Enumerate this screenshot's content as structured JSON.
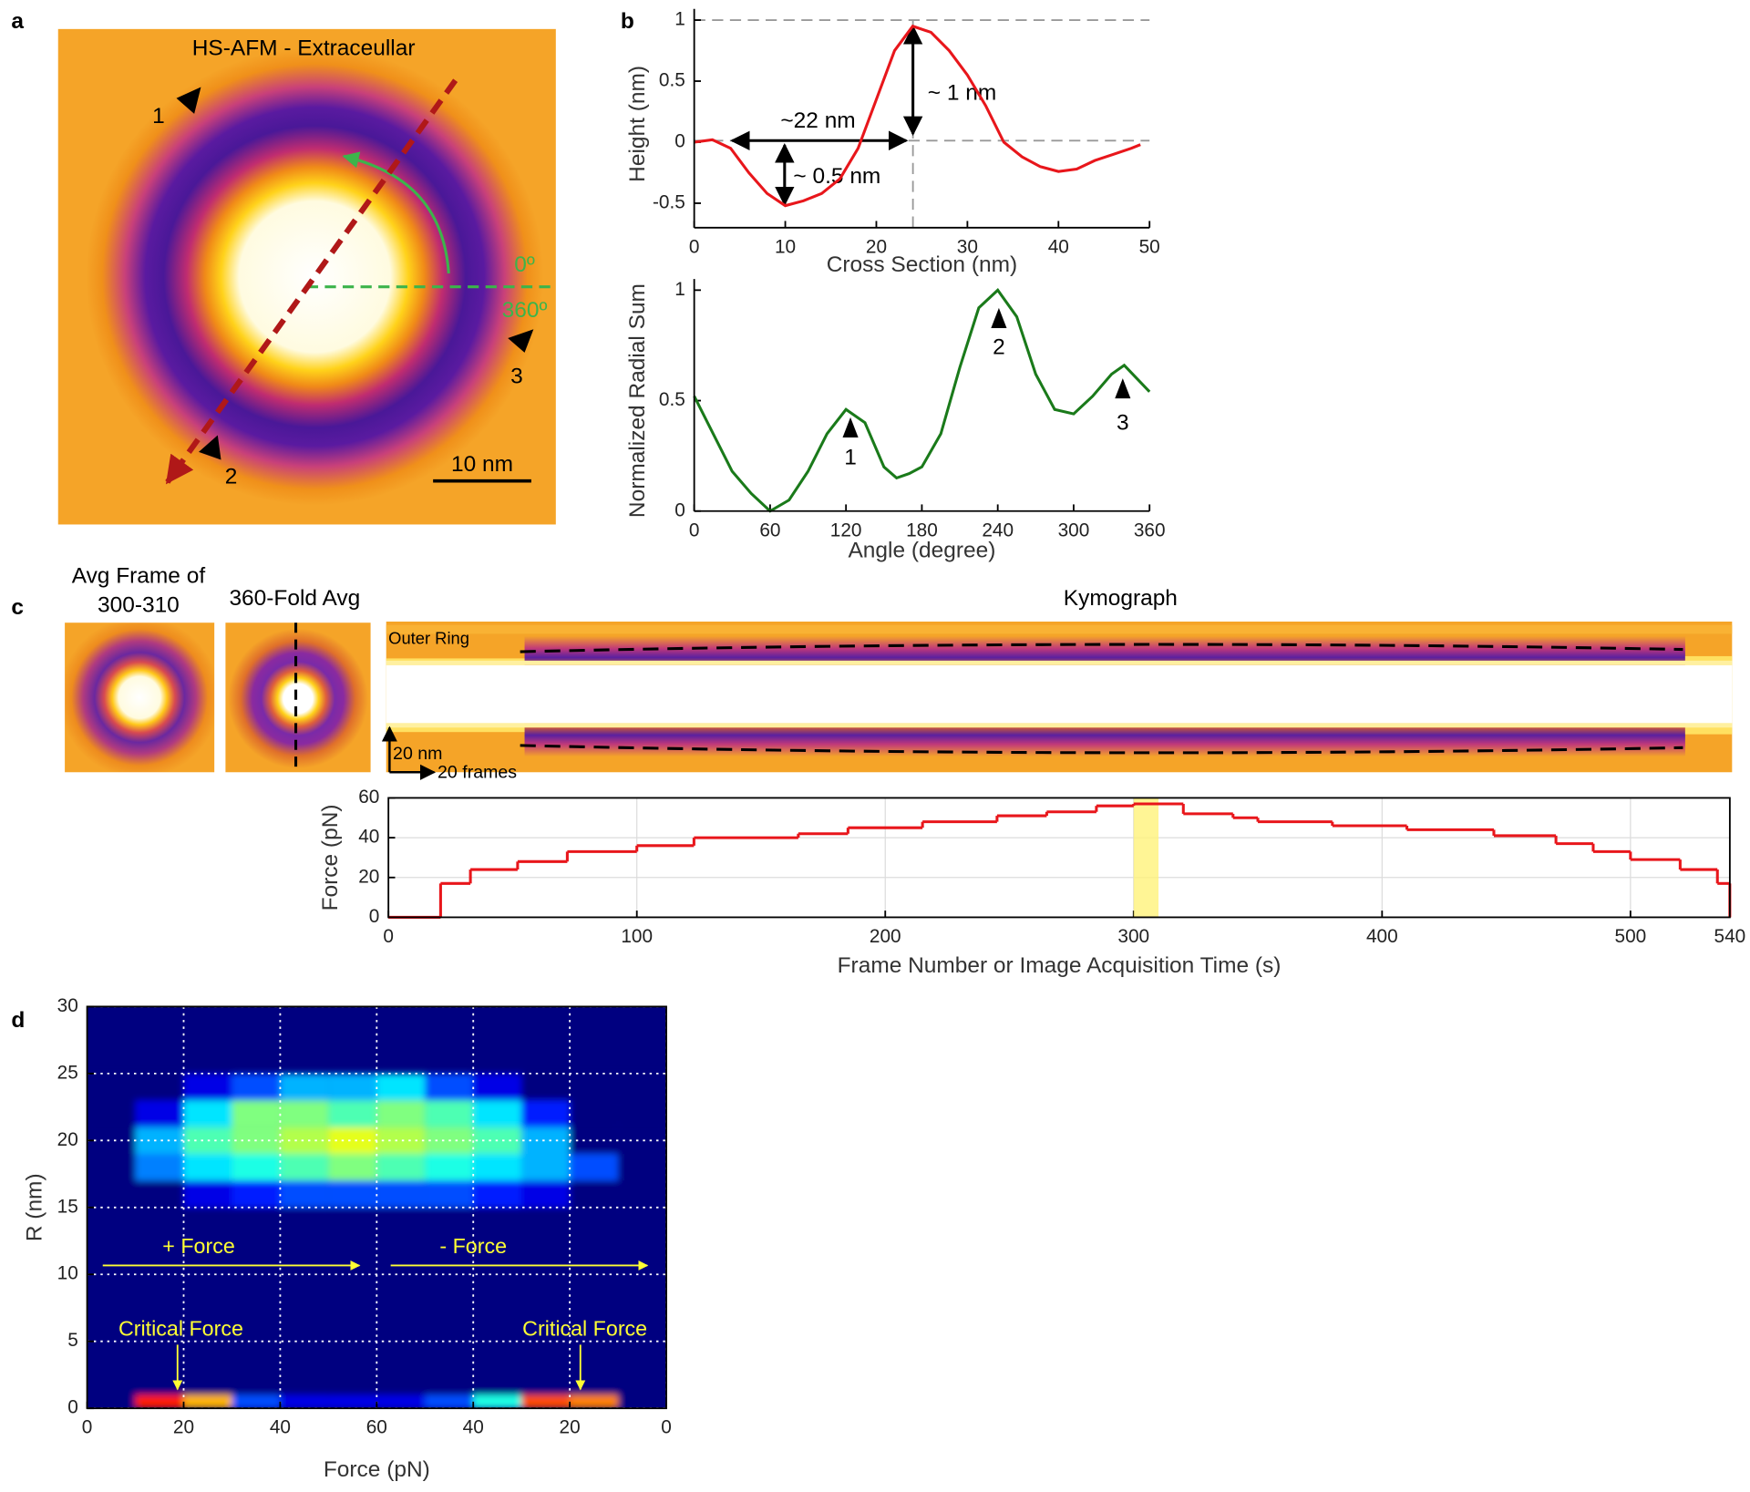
{
  "chart_data": [
    {
      "type": "image",
      "panel": "a",
      "title": "HS-AFM - Extraceullar",
      "annotations": [
        "1",
        "2",
        "3",
        "0º",
        "360º",
        "10 nm"
      ]
    },
    {
      "type": "line",
      "panel": "b",
      "xlabel": "Cross Section (nm)",
      "ylabel": "Height (nm)",
      "x": [
        0,
        2,
        4,
        6,
        8,
        10,
        12,
        14,
        16,
        18,
        20,
        22,
        24,
        26,
        28,
        30,
        32,
        34,
        36,
        38,
        40,
        42,
        44,
        46,
        48,
        49
      ],
      "values": [
        0,
        0.02,
        -0.05,
        -0.25,
        -0.42,
        -0.52,
        -0.48,
        -0.42,
        -0.3,
        -0.05,
        0.35,
        0.75,
        0.95,
        0.9,
        0.75,
        0.55,
        0.3,
        0,
        -0.12,
        -0.2,
        -0.24,
        -0.22,
        -0.15,
        -0.1,
        -0.05,
        -0.02
      ],
      "color": "#e8161b",
      "xlim": [
        0,
        50
      ],
      "ylim": [
        -0.7,
        1
      ],
      "xticks": [
        0,
        10,
        20,
        30,
        40,
        50
      ],
      "yticks": [
        -0.5,
        0,
        0.5,
        1
      ],
      "annotations": [
        "~22 nm",
        "~ 0.5 nm",
        "~ 1 nm"
      ]
    },
    {
      "type": "line",
      "xlabel": "Angle (degree)",
      "ylabel": "Normalized Radial Sum",
      "x": [
        0,
        15,
        30,
        45,
        60,
        75,
        90,
        105,
        120,
        135,
        150,
        160,
        170,
        180,
        195,
        210,
        225,
        240,
        255,
        270,
        285,
        300,
        315,
        330,
        340,
        350,
        360
      ],
      "values": [
        0.52,
        0.35,
        0.18,
        0.08,
        0,
        0.05,
        0.18,
        0.35,
        0.46,
        0.4,
        0.2,
        0.15,
        0.17,
        0.2,
        0.35,
        0.65,
        0.92,
        1,
        0.88,
        0.62,
        0.46,
        0.44,
        0.52,
        0.62,
        0.66,
        0.6,
        0.54
      ],
      "color": "#1a7a1a",
      "xlim": [
        0,
        360
      ],
      "ylim": [
        0,
        1
      ],
      "xticks": [
        0,
        60,
        120,
        180,
        240,
        300,
        360
      ],
      "yticks": [
        0,
        0.5,
        1
      ],
      "annotations": [
        "1",
        "2",
        "3"
      ]
    },
    {
      "type": "image",
      "panel": "c",
      "titles": [
        "Avg Frame of",
        "300-310",
        "360-Fold Avg",
        "Kymograph"
      ],
      "annotations": [
        "Outer Ring",
        "20 nm",
        "20 frames"
      ]
    },
    {
      "type": "step",
      "xlabel": "Frame Number or Image Acquisition Time (s)",
      "ylabel": "Force (pN)",
      "x": [
        0,
        21,
        33,
        52,
        72,
        100,
        123,
        165,
        185,
        215,
        245,
        265,
        285,
        300,
        320,
        340,
        350,
        380,
        410,
        445,
        470,
        485,
        500,
        520,
        535,
        540
      ],
      "values": [
        0,
        17,
        24,
        28,
        33,
        36,
        40,
        42,
        45,
        48,
        51,
        53,
        56,
        57,
        52,
        50,
        48,
        46,
        44,
        41,
        37,
        33,
        29,
        24,
        17,
        0
      ],
      "color": "#e8161b",
      "highlight_x": [
        300,
        310
      ],
      "xlim": [
        0,
        540
      ],
      "ylim": [
        0,
        60
      ],
      "xticks": [
        0,
        100,
        200,
        300,
        400,
        500,
        540
      ],
      "yticks": [
        0,
        20,
        40,
        60
      ],
      "grid": true
    },
    {
      "type": "heatmap",
      "panel": "d",
      "xlabel": "Force (pN)",
      "ylabel": "R (nm)",
      "xbins": [
        0,
        10,
        20,
        30,
        40,
        50,
        60,
        70,
        80,
        90,
        100,
        110,
        120
      ],
      "ybins": [
        0,
        1,
        15,
        17,
        19,
        21,
        23,
        25
      ],
      "z": [
        [
          0,
          0.85,
          0.7,
          0.2,
          0.1,
          0.1,
          0.1,
          0.2,
          0.4,
          0.8,
          0.75,
          0
        ],
        [
          0,
          0,
          0,
          0,
          0,
          0,
          0,
          0,
          0,
          0,
          0,
          0
        ],
        [
          0,
          0,
          0.1,
          0.15,
          0.2,
          0.2,
          0.2,
          0.2,
          0.15,
          0.1,
          0,
          0
        ],
        [
          0,
          0.25,
          0.35,
          0.4,
          0.45,
          0.5,
          0.45,
          0.4,
          0.35,
          0.3,
          0.2,
          0
        ],
        [
          0,
          0.3,
          0.45,
          0.5,
          0.55,
          0.6,
          0.55,
          0.5,
          0.45,
          0.3,
          0,
          0
        ],
        [
          0,
          0.1,
          0.35,
          0.5,
          0.5,
          0.45,
          0.5,
          0.45,
          0.35,
          0.15,
          0,
          0
        ],
        [
          0,
          0,
          0.1,
          0.2,
          0.3,
          0.3,
          0.35,
          0.2,
          0.1,
          0,
          0,
          0
        ]
      ],
      "xlim": [
        0,
        120
      ],
      "ylim": [
        0,
        30
      ],
      "xticks": [
        0,
        20,
        40,
        60,
        {
          "value": 80,
          "label": "40"
        },
        {
          "value": 100,
          "label": "20"
        },
        {
          "value": 120,
          "label": "0"
        }
      ],
      "yticks": [
        0,
        5,
        10,
        15,
        20,
        25,
        30
      ],
      "grid": true,
      "annotations": [
        "+ Force",
        "- Force",
        "Critical Force",
        "Critical Force"
      ]
    }
  ]
}
